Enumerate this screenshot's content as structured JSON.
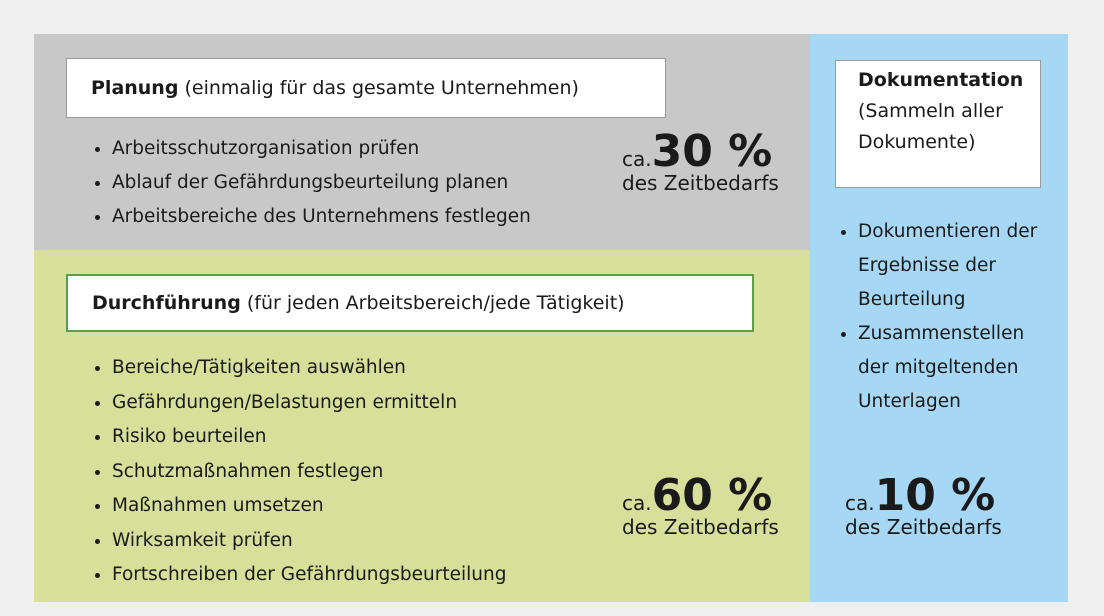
{
  "planung": {
    "title": "Planung",
    "subtitle": "(einmalig für das gesamte Unternehmen)",
    "items": [
      "Arbeitsschutzorganisation prüfen",
      "Ablauf der Gefährdungsbeurteilung planen",
      "Arbeitsbereiche des Unternehmens festlegen"
    ],
    "share": {
      "prefix": "ca.",
      "value": "30 %",
      "suffix": "des Zeitbedarfs"
    }
  },
  "durchfuehrung": {
    "title": "Durchführung",
    "subtitle": "(für jeden Arbeitsbereich/jede Tätigkeit)",
    "items": [
      "Bereiche/Tätigkeiten auswählen",
      "Gefährdungen/Belastungen ermitteln",
      "Risiko beurteilen",
      "Schutzmaßnahmen festlegen",
      "Maßnahmen umsetzen",
      "Wirksamkeit prüfen",
      "Fortschreiben der Gefährdungsbeurteilung"
    ],
    "share": {
      "prefix": "ca.",
      "value": "60 %",
      "suffix": "des Zeitbedarfs"
    }
  },
  "dokumentation": {
    "title": "Dokumentation",
    "subtitle": "(Sammeln aller Dokumente)",
    "items": [
      "Dokumentieren der Ergebnisse der Beurteilung",
      "Zusammenstellen der mitgeltenden Unterlagen"
    ],
    "share": {
      "prefix": "ca.",
      "value": "10 %",
      "suffix": "des Zeitbedarfs"
    }
  }
}
